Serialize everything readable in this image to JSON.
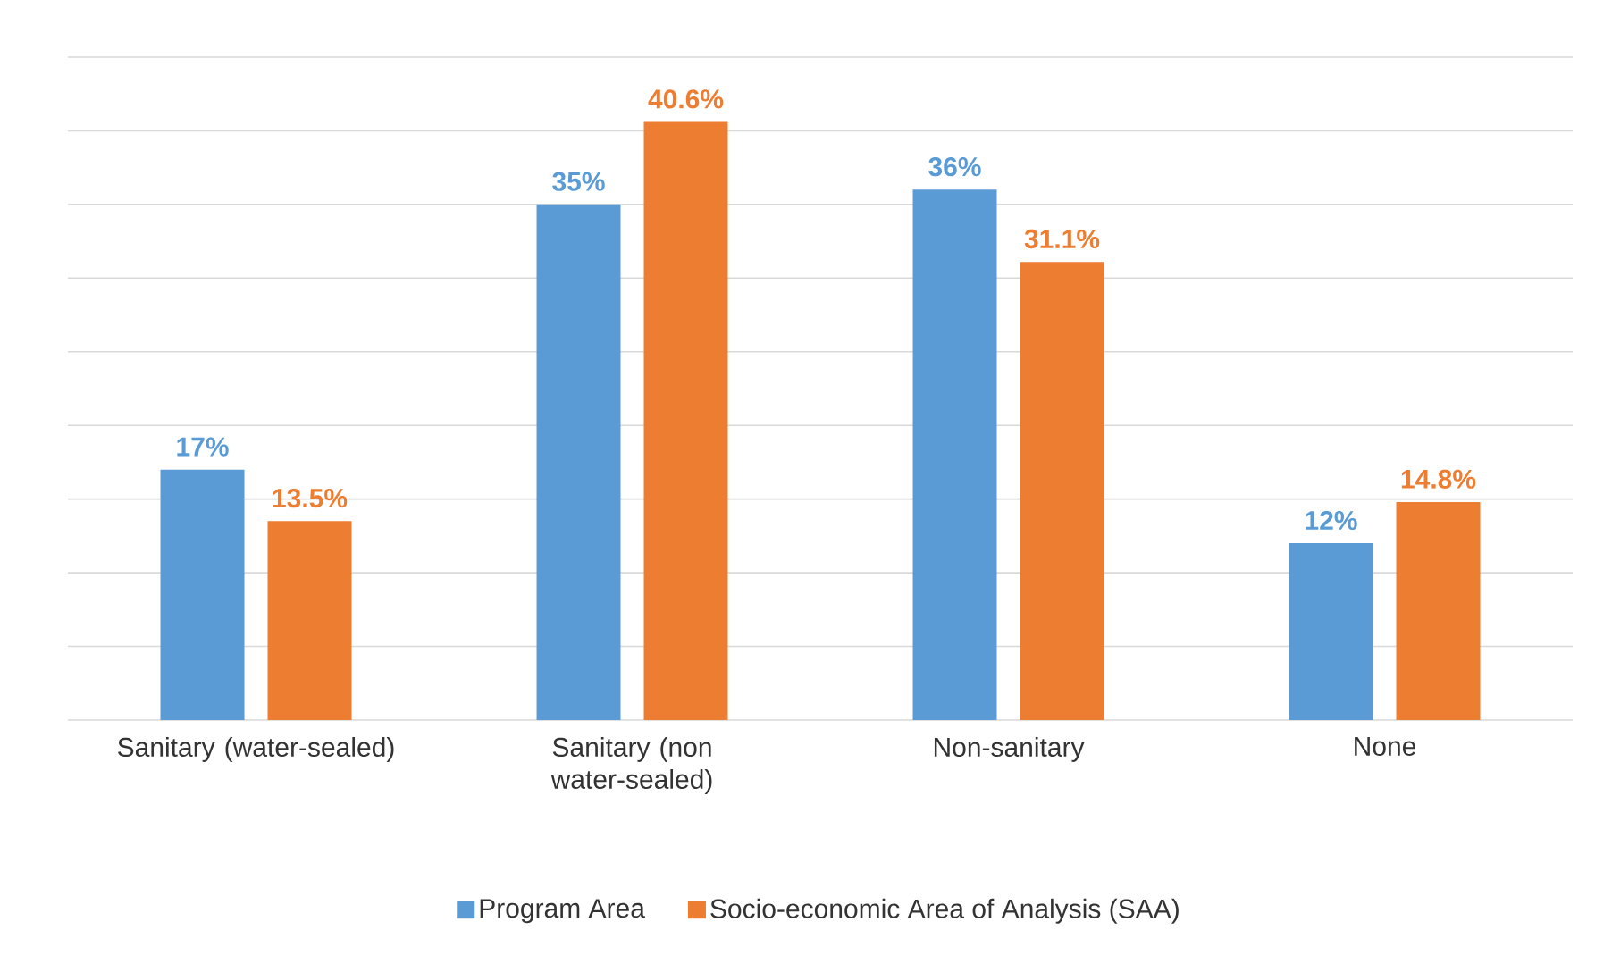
{
  "chart_data": {
    "type": "bar",
    "categories": [
      "Sanitary (water-sealed)",
      "Sanitary (non water-sealed)",
      "Non-sanitary",
      "None"
    ],
    "series": [
      {
        "name": "Program Area",
        "color": "#5b9bd5",
        "values": [
          17,
          35,
          36,
          12
        ],
        "value_labels": [
          "17%",
          "35%",
          "36%",
          "12%"
        ]
      },
      {
        "name": "Socio-economic Area of Analysis (SAA)",
        "color": "#ed7d31",
        "values": [
          13.5,
          40.6,
          31.1,
          14.8
        ],
        "value_labels": [
          "13.5%",
          "40.6%",
          "31.1%",
          "14.8%"
        ]
      }
    ],
    "ylim": [
      0,
      45
    ],
    "yticks": [
      {
        "value": 0,
        "label": null
      },
      {
        "value": 5,
        "label": null
      },
      {
        "value": 10,
        "label": null
      },
      {
        "value": 15,
        "label": null
      },
      {
        "value": 20,
        "label": null
      },
      {
        "value": 25,
        "label": null
      },
      {
        "value": 30,
        "label": null
      },
      {
        "value": 35,
        "label": null
      },
      {
        "value": 40,
        "label": null
      },
      {
        "value": 45,
        "label": null
      }
    ],
    "tick_labels": "x",
    "grid": "y",
    "legend": "bottom"
  }
}
